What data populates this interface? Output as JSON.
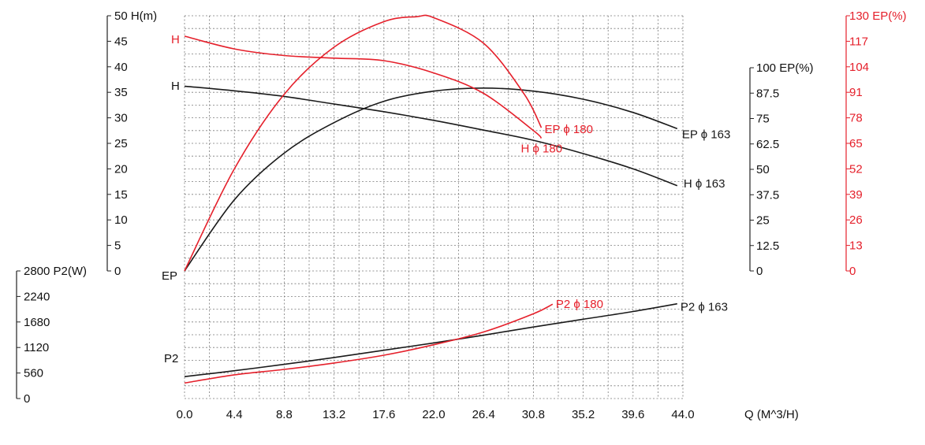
{
  "colors": {
    "black": "#1a1a1a",
    "red": "#e5202b",
    "grid": "#7a7a7a"
  },
  "chart_data": {
    "type": "line",
    "x_axis": {
      "label": "Q    (M^3/H)",
      "ticks": [
        "0.0",
        "4.4",
        "8.8",
        "13.2",
        "17.6",
        "22.0",
        "26.4",
        "30.8",
        "35.2",
        "39.6",
        "44.0"
      ],
      "range": [
        0,
        44
      ]
    },
    "axes": {
      "H": {
        "label": "50 H(m)",
        "ticks": [
          "0",
          "5",
          "10",
          "15",
          "20",
          "25",
          "30",
          "35",
          "40",
          "45"
        ],
        "range": [
          0,
          50
        ]
      },
      "P2": {
        "label": "2800 P2(W)",
        "ticks": [
          "0",
          "560",
          "1120",
          "1680",
          "2240"
        ],
        "range": [
          0,
          2800
        ]
      },
      "EP_black": {
        "label": "100 EP(%)",
        "ticks": [
          "0",
          "12.5",
          "25",
          "37.5",
          "50",
          "62.5",
          "75",
          "87.5"
        ],
        "range": [
          0,
          100
        ]
      },
      "EP_red": {
        "label": "130 EP(%)",
        "ticks": [
          "0",
          "13",
          "26",
          "39",
          "52",
          "65",
          "78",
          "91",
          "104",
          "117"
        ],
        "range": [
          0,
          130
        ]
      }
    },
    "curve_markers": {
      "H_black": "H",
      "H_red": "H",
      "EP": "EP",
      "P2": "P2"
    },
    "series": [
      {
        "name": "H ϕ 163",
        "color": "black",
        "axis": "H",
        "points": [
          [
            0,
            36.2
          ],
          [
            4.4,
            35.3
          ],
          [
            8.8,
            34.2
          ],
          [
            13.2,
            32.7
          ],
          [
            17.6,
            31.2
          ],
          [
            22,
            29.5
          ],
          [
            26.4,
            27.6
          ],
          [
            30.8,
            25.6
          ],
          [
            35.2,
            23.0
          ],
          [
            39.6,
            20.0
          ],
          [
            43.5,
            16.7
          ]
        ]
      },
      {
        "name": "EP ϕ 163",
        "color": "black",
        "axis": "EP_black",
        "points": [
          [
            0,
            0
          ],
          [
            4.4,
            35
          ],
          [
            8.8,
            58
          ],
          [
            13.2,
            73
          ],
          [
            17.6,
            83.5
          ],
          [
            22,
            88.5
          ],
          [
            26.4,
            90
          ],
          [
            30.8,
            88.5
          ],
          [
            35.2,
            84.5
          ],
          [
            39.6,
            78
          ],
          [
            43.5,
            70
          ]
        ]
      },
      {
        "name": "P2 ϕ 163",
        "color": "black",
        "axis": "P2",
        "points": [
          [
            0,
            480
          ],
          [
            4.4,
            610
          ],
          [
            8.8,
            750
          ],
          [
            13.2,
            900
          ],
          [
            17.6,
            1060
          ],
          [
            22,
            1220
          ],
          [
            26.4,
            1390
          ],
          [
            30.8,
            1570
          ],
          [
            35.2,
            1740
          ],
          [
            39.6,
            1910
          ],
          [
            43.5,
            2080
          ]
        ]
      },
      {
        "name": "H ϕ 180",
        "color": "red",
        "axis": "H",
        "points": [
          [
            0,
            46
          ],
          [
            4.4,
            43.5
          ],
          [
            8.8,
            42.2
          ],
          [
            13.2,
            41.7
          ],
          [
            17.6,
            41.2
          ],
          [
            22,
            38.8
          ],
          [
            26.4,
            34.8
          ],
          [
            30.8,
            27.5
          ],
          [
            31.5,
            26
          ]
        ]
      },
      {
        "name": "EP ϕ 180",
        "color": "red",
        "axis": "EP_red",
        "points": [
          [
            0,
            0
          ],
          [
            4.4,
            52
          ],
          [
            8.8,
            90
          ],
          [
            13.2,
            114
          ],
          [
            17.6,
            127
          ],
          [
            20.5,
            129.5
          ],
          [
            22,
            129
          ],
          [
            26.4,
            116
          ],
          [
            30,
            90
          ],
          [
            31.5,
            73
          ]
        ]
      },
      {
        "name": "P2 ϕ 180",
        "color": "red",
        "axis": "P2",
        "points": [
          [
            0,
            340
          ],
          [
            4.4,
            520
          ],
          [
            8.8,
            640
          ],
          [
            13.2,
            780
          ],
          [
            17.6,
            950
          ],
          [
            22,
            1180
          ],
          [
            26.4,
            1460
          ],
          [
            30.8,
            1860
          ],
          [
            32.5,
            2070
          ]
        ]
      }
    ],
    "grid": true
  }
}
